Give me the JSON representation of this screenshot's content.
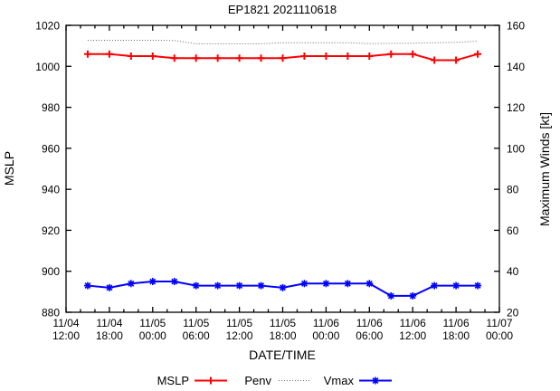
{
  "chart_data": {
    "type": "line",
    "title": "EP1821 2021110618",
    "xlabel": "DATE/TIME",
    "ylabel": "MSLP",
    "y2label": "Maximum Winds [kt]",
    "grid": false,
    "legend_position": "below",
    "x_range_hours": [
      0,
      60
    ],
    "ylim": [
      880,
      1020
    ],
    "y2lim": [
      20,
      160
    ],
    "y_tick_step": 20,
    "x_major_tick_step_hours": 6,
    "x_minor_tick_step_hours": 2,
    "y_tick_labels_left": [
      "1020",
      "1000",
      "980",
      "960",
      "940",
      "920",
      "900",
      "880"
    ],
    "y_tick_labels_right": [
      "160",
      "140",
      "120",
      "100",
      "80",
      "60",
      "40",
      "20"
    ],
    "x_major_tick_labels": [
      {
        "date": "11/04",
        "time": "12:00"
      },
      {
        "date": "11/04",
        "time": "18:00"
      },
      {
        "date": "11/05",
        "time": "00:00"
      },
      {
        "date": "11/05",
        "time": "06:00"
      },
      {
        "date": "11/05",
        "time": "12:00"
      },
      {
        "date": "11/05",
        "time": "18:00"
      },
      {
        "date": "11/06",
        "time": "00:00"
      },
      {
        "date": "11/06",
        "time": "06:00"
      },
      {
        "date": "11/06",
        "time": "12:00"
      },
      {
        "date": "11/06",
        "time": "18:00"
      },
      {
        "date": "11/07",
        "time": "00:00"
      }
    ],
    "x_hours": [
      3,
      6,
      9,
      12,
      15,
      18,
      21,
      24,
      27,
      30,
      33,
      36,
      39,
      42,
      45,
      48,
      51,
      54,
      57
    ],
    "series": [
      {
        "name": "Penv",
        "axis": "left",
        "color": "#666666",
        "style": "dotted",
        "marker": "none",
        "values": [
          1012.7,
          1012.7,
          1012.7,
          1012.7,
          1012.6,
          1011.0,
          1011.0,
          1011.0,
          1011.0,
          1011.5,
          1011.5,
          1011.5,
          1011.5,
          1011.1,
          1011.2,
          1011.3,
          1011.5,
          1011.7,
          1012.3
        ]
      },
      {
        "name": "MSLP",
        "axis": "left",
        "color": "#ff0000",
        "style": "solid",
        "marker": "plus",
        "values": [
          1006,
          1006,
          1005,
          1005,
          1004,
          1004,
          1004,
          1004,
          1004,
          1004,
          1005,
          1005,
          1005,
          1005,
          1006,
          1006,
          1003,
          1003,
          1006
        ]
      },
      {
        "name": "Vmax",
        "axis": "right",
        "color": "#0000ff",
        "style": "solid",
        "marker": "star",
        "values": [
          33,
          32,
          34,
          35,
          35,
          33,
          33,
          33,
          33,
          32,
          34,
          34,
          34,
          34,
          28,
          28,
          33,
          33,
          33
        ]
      }
    ],
    "legend": [
      {
        "label": "MSLP",
        "series": 1
      },
      {
        "label": "Penv",
        "series": 0
      },
      {
        "label": "Vmax",
        "series": 2
      }
    ]
  }
}
